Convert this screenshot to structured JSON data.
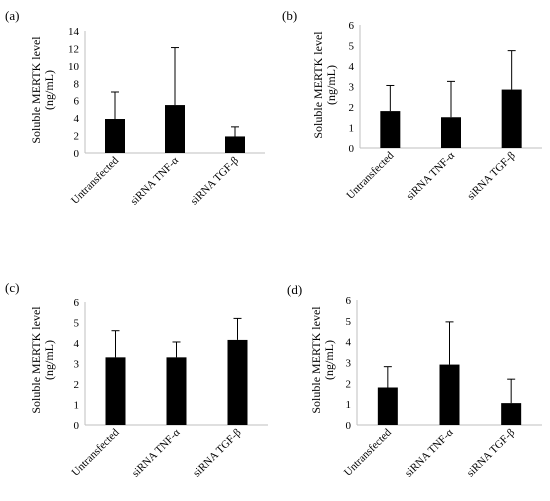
{
  "chart_data": [
    {
      "panel_label": "(a)",
      "type": "bar",
      "categories": [
        "Untransfected",
        "siRNA TNF-α",
        "siRNA TGF-β"
      ],
      "values": [
        3.9,
        5.5,
        1.9
      ],
      "errors": [
        3.1,
        6.6,
        1.1
      ],
      "ylabel_line1": "Soluble MERTK level",
      "ylabel_line2": "(ng/mL)",
      "ylim": [
        0,
        14
      ],
      "yticks": [
        0,
        2,
        4,
        6,
        8,
        10,
        12,
        14
      ],
      "bar_color": "#000000"
    },
    {
      "panel_label": "(b)",
      "type": "bar",
      "categories": [
        "Untransfected",
        "siRNA TNF-α",
        "siRNA TGF-β"
      ],
      "values": [
        1.8,
        1.5,
        2.85
      ],
      "errors": [
        1.25,
        1.75,
        1.9
      ],
      "ylabel_line1": "Soluble MERTK level",
      "ylabel_line2": "(ng/mL)",
      "ylim": [
        0,
        6
      ],
      "yticks": [
        0,
        1,
        2,
        3,
        4,
        5,
        6
      ],
      "bar_color": "#000000"
    },
    {
      "panel_label": "(c)",
      "type": "bar",
      "categories": [
        "Untransfected",
        "siRNA TNF-α",
        "siRNA TGF-β"
      ],
      "values": [
        3.3,
        3.3,
        4.15
      ],
      "errors": [
        1.3,
        0.75,
        1.05
      ],
      "ylabel_line1": "Soluble MERTK level",
      "ylabel_line2": "(ng/mL)",
      "ylim": [
        0,
        6
      ],
      "yticks": [
        0,
        1,
        2,
        3,
        4,
        5,
        6
      ],
      "bar_color": "#000000"
    },
    {
      "panel_label": "(d)",
      "type": "bar",
      "categories": [
        "Untransfected",
        "siRNA TNF-α",
        "siRNA TGF-β"
      ],
      "values": [
        1.8,
        2.9,
        1.05
      ],
      "errors": [
        1.0,
        2.05,
        1.15
      ],
      "ylabel_line1": "Soluble MERTK level",
      "ylabel_line2": "(ng/mL)",
      "ylim": [
        0,
        6
      ],
      "yticks": [
        0,
        1,
        2,
        3,
        4,
        5,
        6
      ],
      "bar_color": "#000000"
    }
  ]
}
